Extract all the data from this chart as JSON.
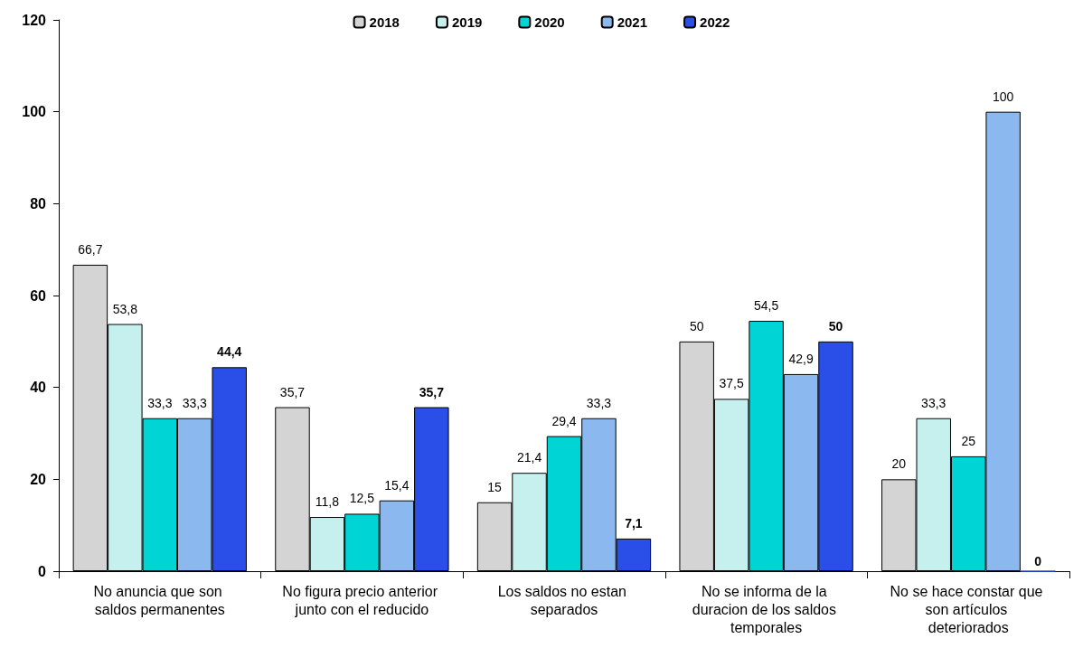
{
  "chart_data": {
    "type": "bar",
    "categories": [
      "No anuncia que son saldos permanentes",
      "No figura precio anterior junto con el reducido",
      "Los saldos no estan separados",
      "No se informa de la duracion de los saldos temporales",
      "No se hace constar que son artículos deteriorados"
    ],
    "series": [
      {
        "name": "2018",
        "color": "#d4d4d4",
        "values": [
          66.7,
          35.7,
          15,
          50,
          20
        ],
        "value_labels": [
          "66,7",
          "35,7",
          "15",
          "50",
          "20"
        ]
      },
      {
        "name": "2019",
        "color": "#c6f0ee",
        "values": [
          53.8,
          11.8,
          21.4,
          37.5,
          33.3
        ],
        "value_labels": [
          "53,8",
          "11,8",
          "21,4",
          "37,5",
          "33,3"
        ]
      },
      {
        "name": "2020",
        "color": "#00d4d4",
        "values": [
          33.3,
          12.5,
          29.4,
          54.5,
          25
        ],
        "value_labels": [
          "33,3",
          "12,5",
          "29,4",
          "54,5",
          "25"
        ]
      },
      {
        "name": "2021",
        "color": "#8cb8f0",
        "values": [
          33.3,
          15.4,
          33.3,
          42.9,
          100
        ],
        "value_labels": [
          "33,3",
          "15,4",
          "33,3",
          "42,9",
          "100"
        ]
      },
      {
        "name": "2022",
        "color": "#2a4ee8",
        "values": [
          44.4,
          35.7,
          7.1,
          50,
          0
        ],
        "value_labels": [
          "44,4",
          "35,7",
          "7,1",
          "50",
          "0"
        ]
      }
    ],
    "ylim": [
      0,
      120
    ],
    "yticks": [
      0,
      20,
      40,
      60,
      80,
      100,
      120
    ],
    "grid": false,
    "legend": "top"
  }
}
